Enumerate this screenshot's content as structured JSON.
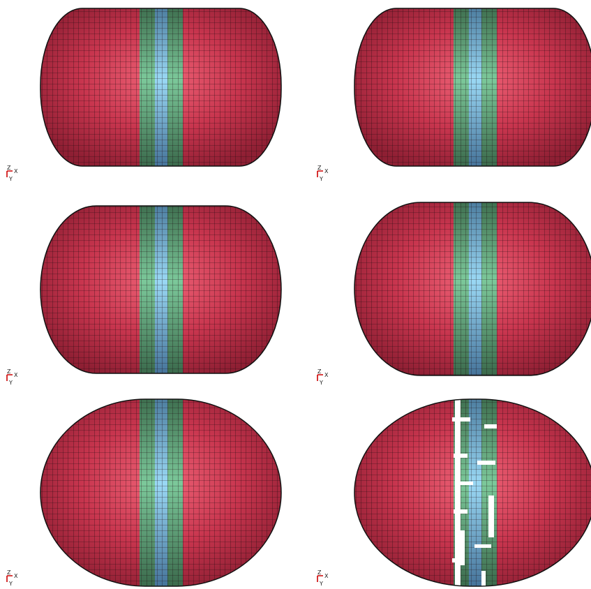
{
  "panels": [
    {
      "triad": {
        "z": "Z",
        "x": "X",
        "y": "Y"
      }
    },
    {
      "triad": {
        "z": "Z",
        "x": "X",
        "y": "Y"
      }
    },
    {
      "triad": {
        "z": "Z",
        "x": "X",
        "y": "Y"
      }
    },
    {
      "triad": {
        "z": "Z",
        "x": "X",
        "y": "Y"
      }
    },
    {
      "triad": {
        "z": "Z",
        "x": "X",
        "y": "Y"
      }
    },
    {
      "triad": {
        "z": "Z",
        "x": "X",
        "y": "Y"
      }
    }
  ]
}
